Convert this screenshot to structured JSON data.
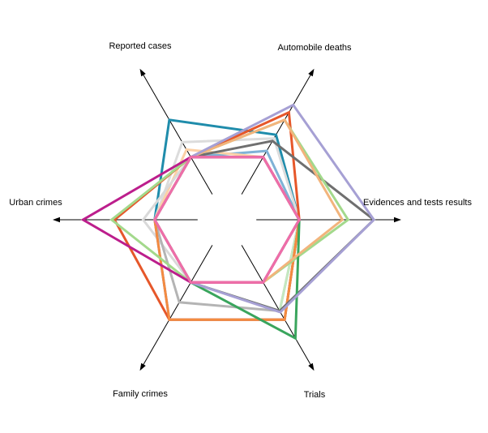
{
  "chart_data": {
    "type": "radar",
    "axes": [
      "Evidences and tests results",
      "Automobile deaths",
      "Reported cases",
      "Urban crimes",
      "Family crimes",
      "Trials"
    ],
    "range": [
      0,
      100
    ],
    "inner_hole": 0.17,
    "grid": false,
    "legend": "none",
    "series": [
      {
        "color": "#1f8cab",
        "values": [
          30,
          48,
          60,
          30,
          30,
          30
        ]
      },
      {
        "color": "#7fb2d6",
        "values": [
          30,
          35,
          30,
          30,
          30,
          30
        ]
      },
      {
        "color": "#dcdcdc",
        "values": [
          30,
          45,
          42,
          30,
          30,
          30
        ]
      },
      {
        "color": "#fcd0a6",
        "values": [
          30,
          30,
          36,
          30,
          30,
          30
        ]
      },
      {
        "color": "#d9d9d9",
        "values": [
          30,
          30,
          30,
          38,
          30,
          30
        ]
      },
      {
        "color": "#b4b4b4",
        "values": [
          30,
          30,
          30,
          30,
          46,
          53
        ]
      },
      {
        "color": "#c4e8c0",
        "values": [
          30,
          30,
          30,
          30,
          30,
          53
        ]
      },
      {
        "color": "#7b6dba",
        "values": [
          30,
          30,
          30,
          30,
          60,
          60
        ]
      },
      {
        "color": "#e6572a",
        "values": [
          30,
          66,
          30,
          58,
          60,
          60
        ]
      },
      {
        "color": "#f38b40",
        "values": [
          30,
          30,
          30,
          30,
          60,
          60
        ]
      },
      {
        "color": "#6f6f6f",
        "values": [
          82,
          43,
          30,
          30,
          30,
          53
        ]
      },
      {
        "color": "#a3d98c",
        "values": [
          64,
          60,
          30,
          60,
          30,
          30
        ]
      },
      {
        "color": "#3aa55d",
        "values": [
          30,
          30,
          30,
          30,
          30,
          75
        ]
      },
      {
        "color": "#f2b47c",
        "values": [
          60,
          60,
          30,
          30,
          30,
          30
        ]
      },
      {
        "color": "#a6a0d4",
        "values": [
          82,
          72,
          30,
          30,
          30,
          54
        ]
      },
      {
        "color": "#bfbfbf",
        "values": [
          30,
          30,
          30,
          30,
          30,
          30
        ]
      },
      {
        "color": "#bc1e8c",
        "values": [
          30,
          30,
          30,
          80,
          30,
          30
        ]
      },
      {
        "color": "#e8509b",
        "values": [
          30,
          30,
          30,
          30,
          30,
          30
        ]
      },
      {
        "color": "#ee6ea8",
        "values": [
          30,
          30,
          30,
          30,
          30,
          30
        ]
      }
    ]
  }
}
